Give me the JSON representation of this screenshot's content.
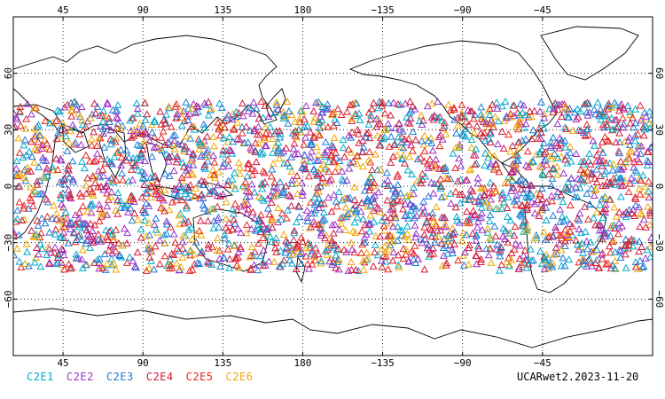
{
  "map": {
    "credit": "UCARwet2.2023-11-20",
    "lon_tick_labels": [
      "45",
      "90",
      "135",
      "180",
      "−135",
      "−90",
      "−45"
    ],
    "lat_tick_labels_left": [
      "60",
      "30",
      "0",
      "−30",
      "−60"
    ],
    "lat_tick_labels_right": [
      "60",
      "30",
      "0",
      "−30",
      "−60"
    ],
    "legend": [
      {
        "label": "C2E1",
        "color": "#00aacc"
      },
      {
        "label": "C2E2",
        "color": "#9b30c8"
      },
      {
        "label": "C2E3",
        "color": "#1e7ad6"
      },
      {
        "label": "C2E4",
        "color": "#d1183c"
      },
      {
        "label": "C2E5",
        "color": "#e8251f"
      },
      {
        "label": "C2E6",
        "color": "#f0a800"
      }
    ],
    "observation_band": {
      "lat_min": -45,
      "lat_max": 45,
      "marker": "triangle"
    }
  }
}
